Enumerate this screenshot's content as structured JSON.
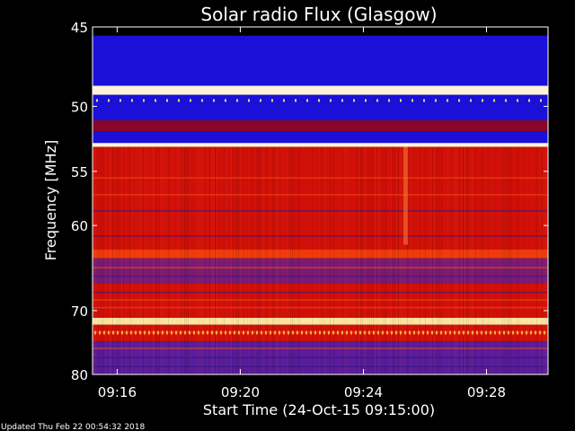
{
  "chart_data": {
    "type": "heatmap",
    "title": "Solar radio Flux (Glasgow)",
    "xlabel": "Start Time (24-Oct-15 09:15:00)",
    "ylabel": "Frequency [MHz]",
    "x_ticks": [
      "09:16",
      "09:20",
      "09:24",
      "09:28"
    ],
    "x_tick_minutes": [
      1,
      5,
      9,
      13
    ],
    "x_range_minutes": [
      0.2,
      15.0
    ],
    "y_ticks": [
      45,
      50,
      55,
      60,
      70,
      80
    ],
    "ylim": [
      45,
      80
    ],
    "y_scale": "reciprocal",
    "grid": false,
    "colormap": "blue-red-yellow-white",
    "bands": [
      {
        "from": 44.7,
        "to": 45.5,
        "level": "black"
      },
      {
        "from": 45.5,
        "to": 48.6,
        "level": "blue"
      },
      {
        "from": 48.6,
        "to": 49.2,
        "level": "white"
      },
      {
        "from": 49.2,
        "to": 51.0,
        "level": "blue"
      },
      {
        "from": 51.0,
        "to": 51.8,
        "level": "dark-red"
      },
      {
        "from": 51.8,
        "to": 52.7,
        "level": "blue"
      },
      {
        "from": 52.7,
        "to": 53.0,
        "level": "white"
      },
      {
        "from": 53.0,
        "to": 62.5,
        "level": "red"
      },
      {
        "from": 62.5,
        "to": 63.5,
        "level": "red-orange"
      },
      {
        "from": 63.5,
        "to": 66.5,
        "level": "red-purple"
      },
      {
        "from": 66.5,
        "to": 71.0,
        "level": "red"
      },
      {
        "from": 71.0,
        "to": 72.0,
        "level": "yellow-white"
      },
      {
        "from": 72.0,
        "to": 74.5,
        "level": "red"
      },
      {
        "from": 74.5,
        "to": 80.0,
        "level": "purple-blue"
      }
    ],
    "colors": {
      "black": "#000000",
      "blue": "#1a10d8",
      "dark-red": "#8a0628",
      "white": "#fff4d8",
      "red": "#d01008",
      "red-orange": "#f03a0a",
      "red-purple": "#7c1a72",
      "yellow-white": "#ffe4a0",
      "purple-blue": "#5a1c98"
    }
  },
  "footer": {
    "updated": "Updated Thu Feb 22 00:54:32 2018"
  }
}
